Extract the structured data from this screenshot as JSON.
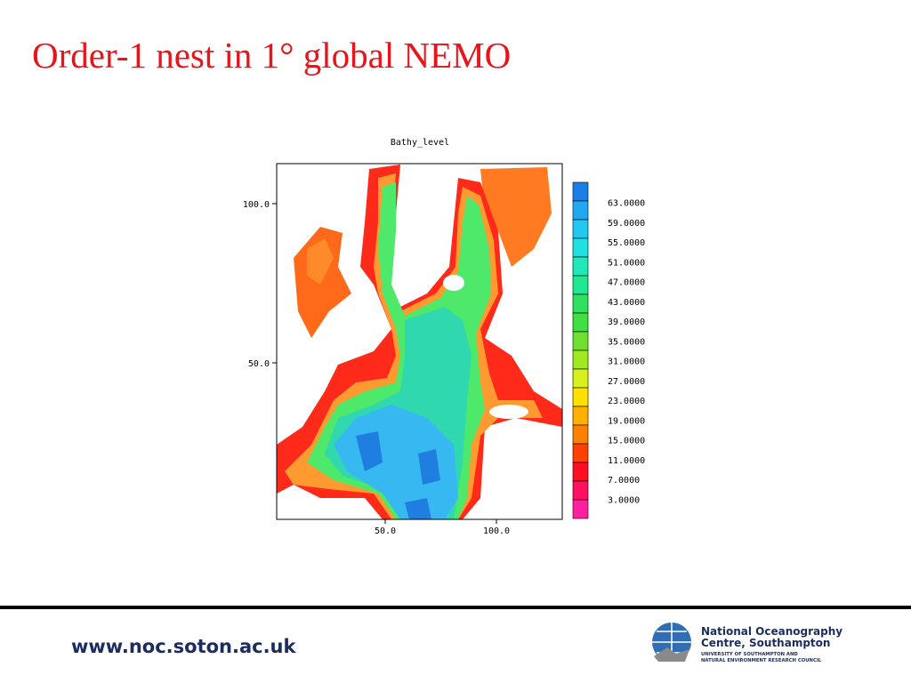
{
  "slide": {
    "title": "Order-1 nest in 1° global NEMO"
  },
  "plot": {
    "title": "Bathy_level",
    "y_ticks": [
      "100.0",
      "50.0"
    ],
    "x_ticks": [
      "50.0",
      "100.0"
    ],
    "colorbar_labels": [
      "63.0000",
      "59.0000",
      "55.0000",
      "51.0000",
      "47.0000",
      "43.0000",
      "39.0000",
      "35.0000",
      "31.0000",
      "27.0000",
      "23.0000",
      "19.0000",
      "15.0000",
      "11.0000",
      "7.0000",
      "3.0000"
    ]
  },
  "footer": {
    "url": "www.noc.soton.ac.uk",
    "logo": {
      "line1": "National Oceanography",
      "line2": "Centre, Southampton",
      "line3": "UNIVERSITY OF SOUTHAMPTON AND",
      "line4": "NATURAL ENVIRONMENT RESEARCH COUNCIL"
    }
  }
}
